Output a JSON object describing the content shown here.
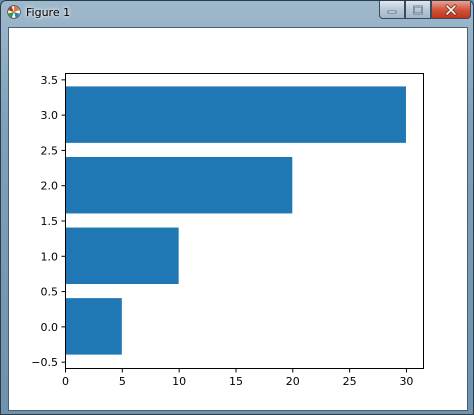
{
  "window": {
    "title": "Figure 1",
    "icons": {
      "app": "matplotlib-icon",
      "minimize": "minimize-icon",
      "maximize": "maximize-icon",
      "close": "close-icon"
    }
  },
  "chart_data": {
    "type": "bar",
    "orientation": "horizontal",
    "categories": [
      0,
      1,
      2,
      3
    ],
    "values": [
      5,
      10,
      20,
      30
    ],
    "bar_height": 0.8,
    "color": "#1f77b4",
    "title": "",
    "xlabel": "",
    "ylabel": "",
    "xlim": [
      0,
      31.5
    ],
    "ylim": [
      -0.59,
      3.59
    ],
    "xticks": [
      0,
      5,
      10,
      15,
      20,
      25,
      30
    ],
    "xtick_labels": [
      "0",
      "5",
      "10",
      "15",
      "20",
      "25",
      "30"
    ],
    "yticks": [
      -0.5,
      0.0,
      0.5,
      1.0,
      1.5,
      2.0,
      2.5,
      3.0,
      3.5
    ],
    "ytick_labels": [
      "−0.5",
      "0.0",
      "0.5",
      "1.0",
      "1.5",
      "2.0",
      "2.5",
      "3.0",
      "3.5"
    ],
    "grid": false,
    "legend": "none"
  }
}
